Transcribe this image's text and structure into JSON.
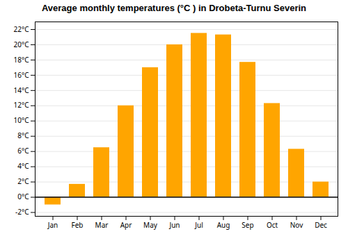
{
  "chart_data": {
    "type": "bar",
    "title": "Average monthly temperatures (°C ) in Drobeta-Turnu Severin",
    "categories": [
      "Jan",
      "Feb",
      "Mar",
      "Apr",
      "May",
      "Jun",
      "Jul",
      "Aug",
      "Sep",
      "Oct",
      "Nov",
      "Dec"
    ],
    "values": [
      -1.0,
      1.7,
      6.5,
      12.0,
      17.0,
      20.0,
      21.5,
      21.3,
      17.7,
      12.3,
      6.3,
      2.0
    ],
    "color": "#FFA500",
    "ylim": [
      -2.5,
      23
    ],
    "yticks": [
      {
        "value": -2,
        "label": "-2°C"
      },
      {
        "value": 0,
        "label": "0°C"
      },
      {
        "value": 2,
        "label": "2°C"
      },
      {
        "value": 4,
        "label": "4°C"
      },
      {
        "value": 6,
        "label": "6°C"
      },
      {
        "value": 8,
        "label": "8°C"
      },
      {
        "value": 10,
        "label": "10°C"
      },
      {
        "value": 12,
        "label": "12°C"
      },
      {
        "value": 14,
        "label": "14°C"
      },
      {
        "value": 16,
        "label": "16°C"
      },
      {
        "value": 18,
        "label": "18°C"
      },
      {
        "value": 20,
        "label": "20°C"
      },
      {
        "value": 22,
        "label": "22°C"
      }
    ],
    "grid": true
  }
}
